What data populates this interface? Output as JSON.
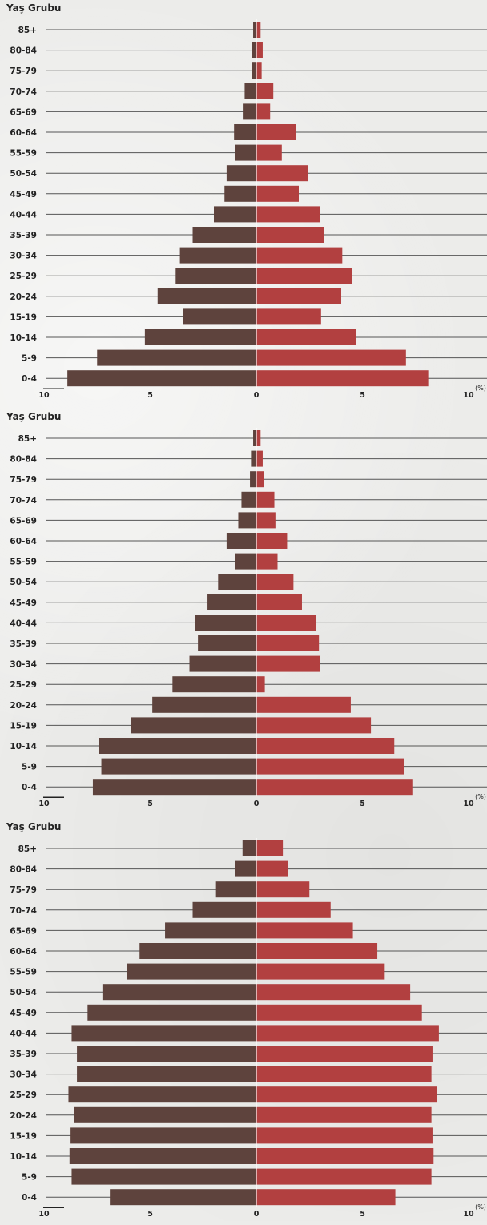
{
  "colors": {
    "male": "#5e433d",
    "female": "#b24040",
    "grid": "#555555"
  },
  "chart_data": [
    {
      "type": "bar",
      "orientation": "horizontal-population-pyramid",
      "ylabel": "Yaş Grubu",
      "x_unit": "(%)",
      "xlim": [
        -10,
        10
      ],
      "x_ticks": [
        "10",
        "5",
        "0",
        "5",
        "10"
      ],
      "categories": [
        "85+",
        "80-84",
        "75-79",
        "70-74",
        "65-69",
        "60-64",
        "55-59",
        "50-54",
        "45-49",
        "40-44",
        "35-39",
        "30-34",
        "25-29",
        "20-24",
        "15-19",
        "10-14",
        "5-9",
        "0-4"
      ],
      "series": [
        {
          "values": [
            0.15,
            0.2,
            0.2,
            0.55,
            0.6,
            1.05,
            1.0,
            1.4,
            1.5,
            2.0,
            3.0,
            3.6,
            3.8,
            4.65,
            3.45,
            5.25,
            7.5,
            8.9
          ]
        },
        {
          "values": [
            0.2,
            0.3,
            0.25,
            0.8,
            0.65,
            1.85,
            1.2,
            2.45,
            2.0,
            3.0,
            3.2,
            4.05,
            4.5,
            4.0,
            3.05,
            4.7,
            7.05,
            8.1
          ]
        }
      ]
    },
    {
      "type": "bar",
      "orientation": "horizontal-population-pyramid",
      "ylabel": "Yaş Grubu",
      "x_unit": "(%)",
      "xlim": [
        -10,
        10
      ],
      "x_ticks": [
        "10",
        "5",
        "0",
        "5",
        "10"
      ],
      "categories": [
        "85+",
        "80-84",
        "75-79",
        "70-74",
        "65-69",
        "60-64",
        "55-59",
        "50-54",
        "45-49",
        "40-44",
        "35-39",
        "30-34",
        "25-29",
        "20-24",
        "15-19",
        "10-14",
        "5-9",
        "0-4"
      ],
      "series": [
        {
          "values": [
            0.15,
            0.25,
            0.3,
            0.7,
            0.85,
            1.4,
            1.0,
            1.8,
            2.3,
            2.9,
            2.75,
            3.15,
            3.95,
            4.9,
            5.9,
            7.4,
            7.3,
            7.7
          ]
        },
        {
          "values": [
            0.2,
            0.3,
            0.35,
            0.85,
            0.9,
            1.45,
            1.0,
            1.75,
            2.15,
            2.8,
            2.95,
            3.0,
            0.4,
            4.45,
            5.4,
            6.5,
            6.95,
            7.35
          ]
        }
      ]
    },
    {
      "type": "bar",
      "orientation": "horizontal-population-pyramid",
      "ylabel": "Yaş Grubu",
      "x_unit": "(%)",
      "xlim": [
        -10,
        10
      ],
      "x_ticks": [
        "10",
        "5",
        "0",
        "5",
        "10"
      ],
      "categories": [
        "85+",
        "80-84",
        "75-79",
        "70-74",
        "65-69",
        "60-64",
        "55-59",
        "50-54",
        "45-49",
        "40-44",
        "35-39",
        "30-34",
        "25-29",
        "20-24",
        "15-19",
        "10-14",
        "5-9",
        "0-4"
      ],
      "series": [
        {
          "values": [
            0.65,
            1.0,
            1.9,
            3.0,
            4.3,
            5.5,
            6.1,
            7.25,
            7.95,
            8.7,
            8.45,
            8.45,
            8.85,
            8.6,
            8.75,
            8.8,
            8.7,
            6.9
          ]
        },
        {
          "values": [
            1.25,
            1.5,
            2.5,
            3.5,
            4.55,
            5.7,
            6.05,
            7.25,
            7.8,
            8.6,
            8.3,
            8.25,
            8.5,
            8.25,
            8.3,
            8.35,
            8.25,
            6.55
          ]
        }
      ]
    }
  ]
}
